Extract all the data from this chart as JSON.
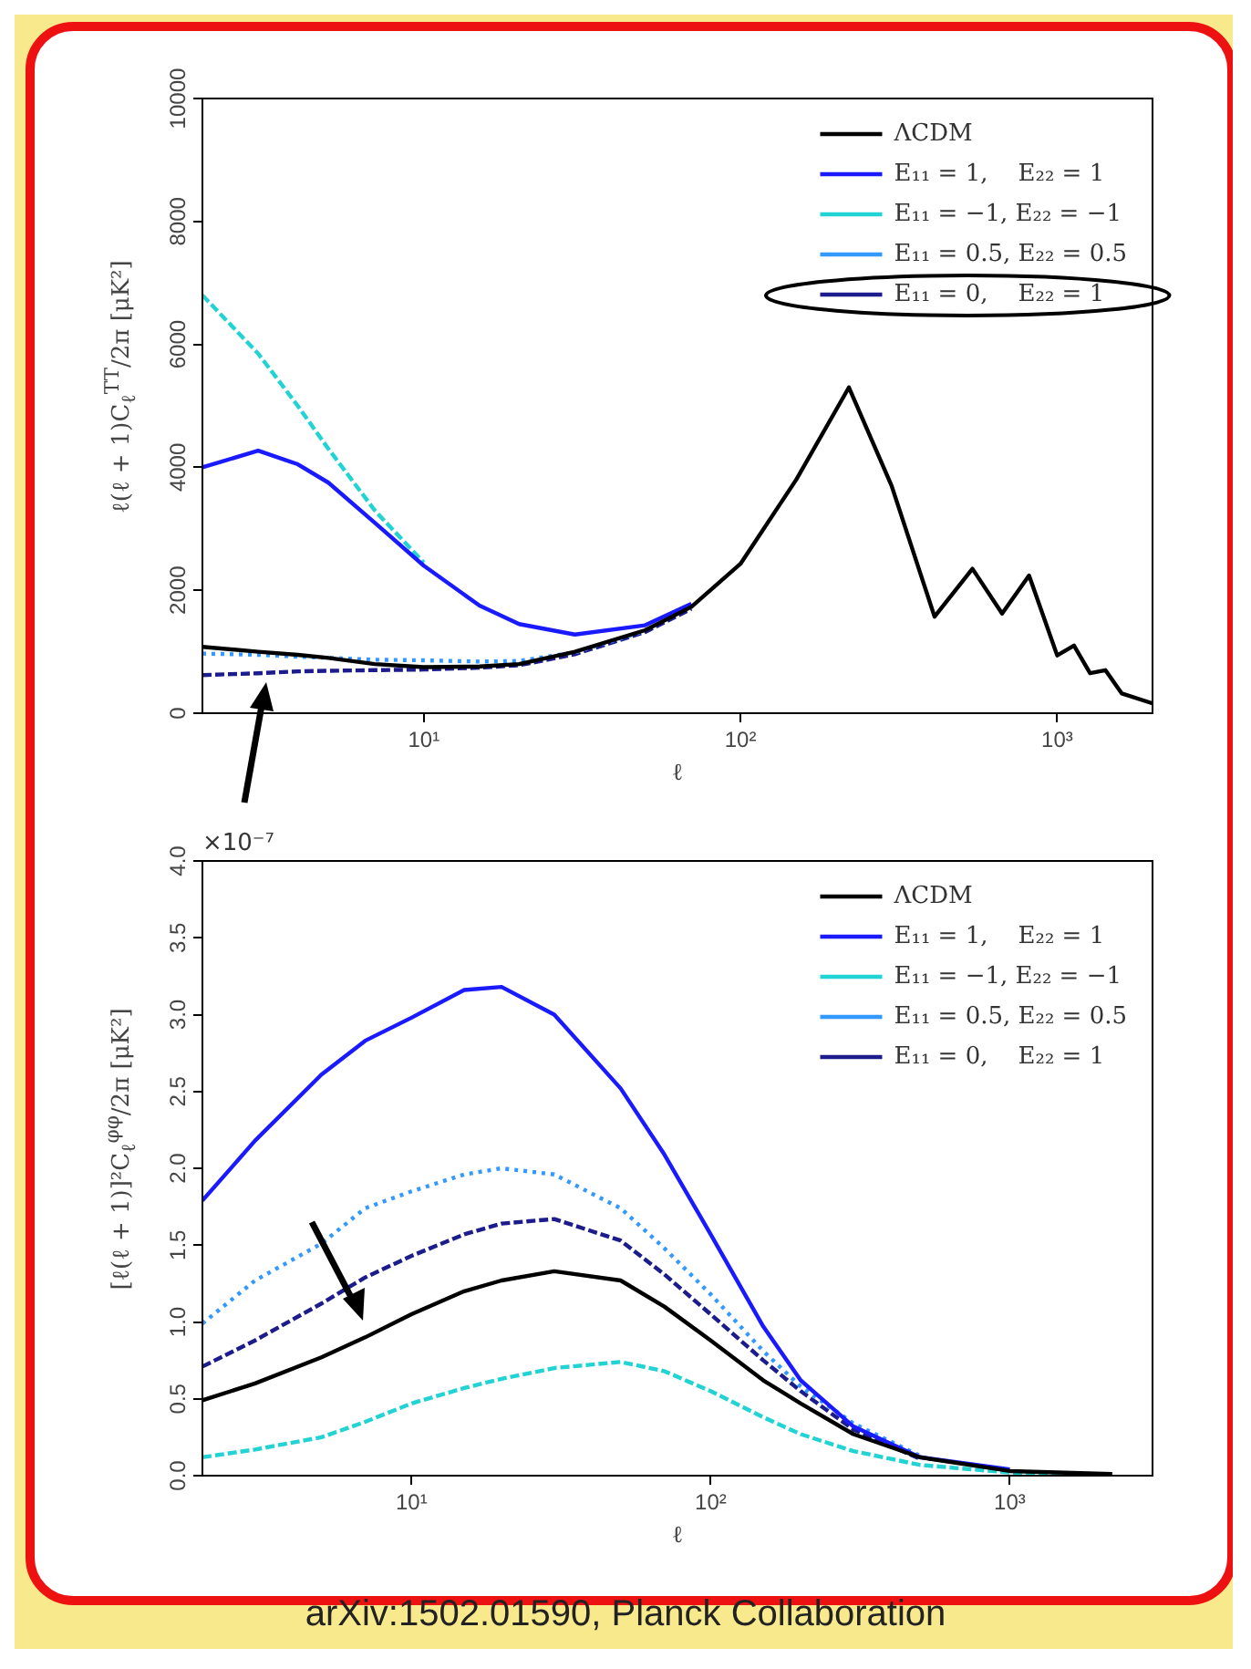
{
  "chart_data": [
    {
      "type": "line",
      "xlabel": "ℓ",
      "ylabel": "ℓ(ℓ + 1)C$_{ℓ}$$^{TT}$/2π [μK²]",
      "log": "x",
      "grid": false,
      "legend": "top right",
      "line_style": "solid",
      "x": [
        2,
        3,
        4,
        5,
        7,
        10,
        15,
        20,
        30,
        50,
        70,
        100,
        150,
        220,
        300,
        410,
        540,
        670,
        815,
        1000,
        1130,
        1270,
        1420,
        1600,
        2000
      ],
      "xlim": [
        2,
        2000
      ],
      "xticks": [
        {
          "value": 10,
          "label": "10¹"
        },
        {
          "value": 100,
          "label": "10²"
        },
        {
          "value": 1000,
          "label": "10³"
        }
      ],
      "ylim": [
        0,
        10000
      ],
      "yticks": [
        0,
        2000,
        4000,
        6000,
        8000,
        10000
      ],
      "series": [
        {
          "name": "ΛCDM",
          "color": "#000000",
          "values": [
            1080,
            1000,
            950,
            900,
            800,
            750,
            760,
            800,
            1000,
            1350,
            1730,
            2430,
            3800,
            5300,
            3700,
            1570,
            2350,
            1620,
            2240,
            940,
            1100,
            650,
            700,
            320,
            160
          ]
        },
        {
          "name": "E₁₁ = 1,    E₂₂ = 1",
          "color": "#1a1aff",
          "values": [
            4000,
            4270,
            4050,
            3750,
            3100,
            2400,
            1750,
            1450,
            1280,
            1430,
            1780,
            null,
            null,
            null,
            null,
            null,
            null,
            null,
            null,
            null,
            null,
            null,
            null,
            null,
            null
          ]
        },
        {
          "name": "E₁₁ = −1, E₂₂ = −1",
          "color": "#22d3d3",
          "line_style": "dashed",
          "values": [
            6800,
            5850,
            5000,
            4300,
            3300,
            2450,
            null,
            null,
            null,
            null,
            null,
            null,
            null,
            null,
            null,
            null,
            null,
            null,
            null,
            null,
            null,
            null,
            null,
            null,
            null
          ]
        },
        {
          "name": "E₁₁ = 0.5, E₂₂ = 0.5",
          "color": "#3399ff",
          "line_style": "dotted",
          "values": [
            970,
            950,
            920,
            900,
            870,
            860,
            840,
            850,
            990,
            1340,
            null,
            null,
            null,
            null,
            null,
            null,
            null,
            null,
            null,
            null,
            null,
            null,
            null,
            null,
            null
          ]
        },
        {
          "name": "E₁₁ = 0,    E₂₂ = 1",
          "color": "#1c1c8c",
          "line_style": "dashed",
          "values": [
            620,
            650,
            680,
            690,
            700,
            710,
            740,
            780,
            960,
            1320,
            1700,
            null,
            null,
            null,
            null,
            null,
            null,
            null,
            null,
            null,
            null,
            null,
            null,
            null,
            null
          ]
        }
      ]
    },
    {
      "type": "line",
      "xlabel": "ℓ",
      "ylabel": "[ℓ(ℓ + 1)]²C$_{ℓ}$$^{φφ}$/2π [μK²]",
      "log": "x",
      "grid": false,
      "legend": "top right",
      "line_style": "solid",
      "annotations": [
        "×10⁻⁷",
        "arXiv:1502.01590, Planck Collaboration"
      ],
      "x": [
        2,
        3,
        5,
        7,
        10,
        15,
        20,
        30,
        50,
        70,
        100,
        150,
        200,
        300,
        500,
        1000,
        2200
      ],
      "xlim": [
        2,
        3000
      ],
      "xticks": [
        {
          "value": 10,
          "label": "10¹"
        },
        {
          "value": 100,
          "label": "10²"
        },
        {
          "value": 1000,
          "label": "10³"
        }
      ],
      "ylim": [
        0,
        4
      ],
      "yticks": [
        {
          "value": 0,
          "label": "0.0"
        },
        {
          "value": 0.5,
          "label": "0.5"
        },
        {
          "value": 1,
          "label": "1.0"
        },
        {
          "value": 1.5,
          "label": "1.5"
        },
        {
          "value": 2,
          "label": "2.0"
        },
        {
          "value": 2.5,
          "label": "2.5"
        },
        {
          "value": 3,
          "label": "3.0"
        },
        {
          "value": 3.5,
          "label": "3.5"
        },
        {
          "value": 4,
          "label": "4.0"
        }
      ],
      "series": [
        {
          "name": "ΛCDM",
          "color": "#000000",
          "values": [
            0.49,
            0.6,
            0.77,
            0.9,
            1.05,
            1.2,
            1.27,
            1.33,
            1.27,
            1.1,
            0.88,
            0.62,
            0.47,
            0.27,
            0.12,
            0.03,
            0.01
          ]
        },
        {
          "name": "E₁₁ = 1,    E₂₂ = 1",
          "color": "#1a1aff",
          "values": [
            1.79,
            2.18,
            2.61,
            2.83,
            2.98,
            3.16,
            3.18,
            3.0,
            2.52,
            2.09,
            1.57,
            0.97,
            0.62,
            0.32,
            0.12,
            0.04,
            null
          ]
        },
        {
          "name": "E₁₁ = −1, E₂₂ = −1",
          "color": "#22d3d3",
          "line_style": "dashed",
          "values": [
            0.12,
            0.17,
            0.25,
            0.35,
            0.47,
            0.57,
            0.63,
            0.7,
            0.74,
            0.68,
            0.55,
            0.38,
            0.27,
            0.16,
            0.07,
            0.02,
            0
          ]
        },
        {
          "name": "E₁₁ = 0.5, E₂₂ = 0.5",
          "color": "#3399ff",
          "line_style": "dotted",
          "values": [
            0.99,
            1.27,
            1.51,
            1.74,
            1.85,
            1.96,
            2.0,
            1.96,
            1.74,
            1.48,
            1.18,
            0.81,
            0.58,
            0.34,
            0.13,
            null,
            null
          ]
        },
        {
          "name": "E₁₁ = 0,    E₂₂ = 1",
          "color": "#1c1c8c",
          "line_style": "dashed",
          "values": [
            0.71,
            0.88,
            1.12,
            1.29,
            1.43,
            1.57,
            1.64,
            1.67,
            1.53,
            1.31,
            1.05,
            0.75,
            0.55,
            0.3,
            0.11,
            null,
            null
          ]
        }
      ]
    }
  ]
}
